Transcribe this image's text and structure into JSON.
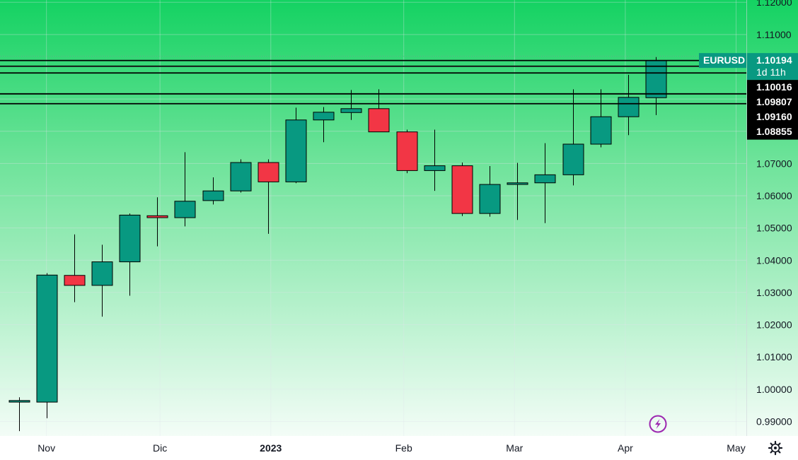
{
  "chart_data": {
    "type": "candlestick",
    "symbol": "EURUSD",
    "countdown": "1d 11h",
    "last_price": "1.10194",
    "ylim": [
      0.9855,
      1.1207
    ],
    "y_ticks": [
      "0.99000",
      "1.00000",
      "1.01000",
      "1.02000",
      "1.03000",
      "1.04000",
      "1.05000",
      "1.06000",
      "1.07000",
      "1.08000",
      "1.09000",
      "1.10000",
      "1.11000",
      "1.12000"
    ],
    "x_labels": [
      {
        "text": "Nov",
        "index": 1,
        "bold": false
      },
      {
        "text": "Dic",
        "index": 5.1,
        "bold": false
      },
      {
        "text": "2023",
        "index": 9.1,
        "bold": true
      },
      {
        "text": "Feb",
        "index": 13.9,
        "bold": false
      },
      {
        "text": "Mar",
        "index": 17.9,
        "bold": false
      },
      {
        "text": "Apr",
        "index": 21.9,
        "bold": false
      },
      {
        "text": "May",
        "index": 25.9,
        "bold": false
      }
    ],
    "candles": [
      {
        "o": 0.996,
        "h": 0.9975,
        "l": 0.987,
        "c": 0.9965
      },
      {
        "o": 0.996,
        "h": 1.036,
        "l": 0.991,
        "c": 1.0354
      },
      {
        "o": 1.0353,
        "h": 1.048,
        "l": 1.027,
        "c": 1.0322
      },
      {
        "o": 1.0322,
        "h": 1.0448,
        "l": 1.0225,
        "c": 1.0395
      },
      {
        "o": 1.0395,
        "h": 1.0545,
        "l": 1.029,
        "c": 1.054
      },
      {
        "o": 1.0538,
        "h": 1.0595,
        "l": 1.0443,
        "c": 1.0532
      },
      {
        "o": 1.0532,
        "h": 1.0735,
        "l": 1.0505,
        "c": 1.0583
      },
      {
        "o": 1.0585,
        "h": 1.0657,
        "l": 1.0573,
        "c": 1.0615
      },
      {
        "o": 1.0615,
        "h": 1.0713,
        "l": 1.061,
        "c": 1.0703
      },
      {
        "o": 1.0703,
        "h": 1.0713,
        "l": 1.0482,
        "c": 1.0643
      },
      {
        "o": 1.0643,
        "h": 1.0873,
        "l": 1.0639,
        "c": 1.0835
      },
      {
        "o": 1.0835,
        "h": 1.0875,
        "l": 1.0766,
        "c": 1.0859
      },
      {
        "o": 1.0858,
        "h": 1.0928,
        "l": 1.0835,
        "c": 1.087
      },
      {
        "o": 1.087,
        "h": 1.093,
        "l": 1.08,
        "c": 1.0798
      },
      {
        "o": 1.0798,
        "h": 1.0805,
        "l": 1.067,
        "c": 1.0678
      },
      {
        "o": 1.0678,
        "h": 1.0805,
        "l": 1.0615,
        "c": 1.0693
      },
      {
        "o": 1.0693,
        "h": 1.0703,
        "l": 1.0537,
        "c": 1.0545
      },
      {
        "o": 1.0545,
        "h": 1.0692,
        "l": 1.0535,
        "c": 1.0635
      },
      {
        "o": 1.0635,
        "h": 1.0702,
        "l": 1.0525,
        "c": 1.064
      },
      {
        "o": 1.064,
        "h": 1.0763,
        "l": 1.0515,
        "c": 1.0665
      },
      {
        "o": 1.0665,
        "h": 1.093,
        "l": 1.0632,
        "c": 1.076
      },
      {
        "o": 1.076,
        "h": 1.093,
        "l": 1.075,
        "c": 1.0845
      },
      {
        "o": 1.0845,
        "h": 1.0975,
        "l": 1.0788,
        "c": 1.0905
      },
      {
        "o": 1.0904,
        "h": 1.103,
        "l": 1.085,
        "c": 1.1019
      }
    ],
    "levels": [
      {
        "value": 1.10194,
        "label": "1.10194"
      },
      {
        "value": 1.10016,
        "label": "1.10016"
      },
      {
        "value": 1.09807,
        "label": "1.09807"
      },
      {
        "value": 1.0916,
        "label": "1.09160"
      },
      {
        "value": 1.08855,
        "label": "1.08855"
      }
    ],
    "colors": {
      "bull": "#089981",
      "bear": "#f23645",
      "bg_top": "#14d262",
      "bg_bottom": "#ffffff",
      "grid": "#e0e3eb",
      "level": "#000000",
      "label_bg": "#000000",
      "symbol_bg": "#089981"
    }
  },
  "icons": {
    "settings": "gear-icon",
    "flash": "lightning-icon"
  }
}
